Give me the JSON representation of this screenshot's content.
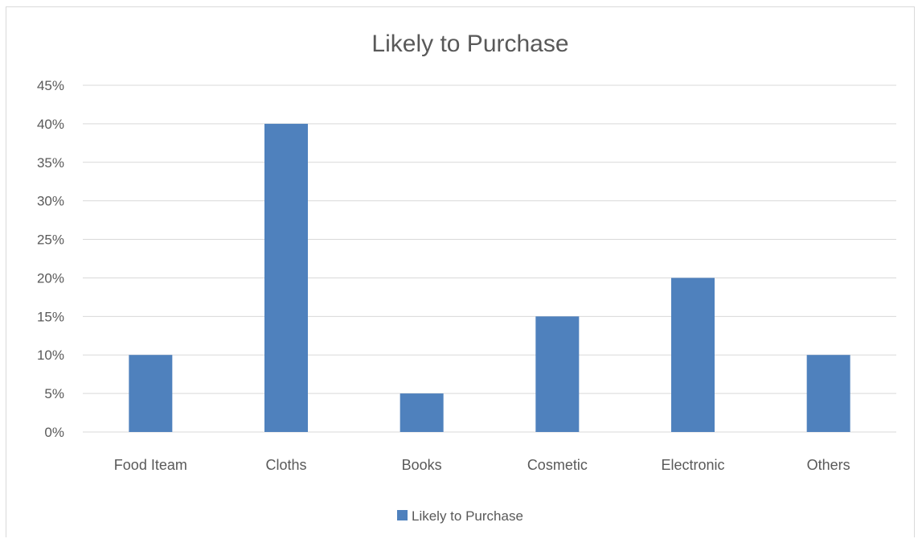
{
  "chart_data": {
    "type": "bar",
    "title": "Likely to Purchase",
    "categories": [
      "Food Iteam",
      "Cloths",
      "Books",
      "Cosmetic",
      "Electronic",
      "Others"
    ],
    "series": [
      {
        "name": "Likely to Purchase",
        "values": [
          10,
          40,
          5,
          15,
          20,
          10
        ]
      }
    ],
    "value_format": "percent",
    "ylim": [
      0,
      45
    ],
    "yticks": [
      "0%",
      "5%",
      "10%",
      "15%",
      "20%",
      "25%",
      "30%",
      "35%",
      "40%",
      "45%"
    ],
    "grid": true,
    "legend_position": "bottom",
    "colors": {
      "bar": "#4f81bd",
      "grid": "#d9d9d9",
      "text": "#595959",
      "title": "#595959"
    }
  }
}
